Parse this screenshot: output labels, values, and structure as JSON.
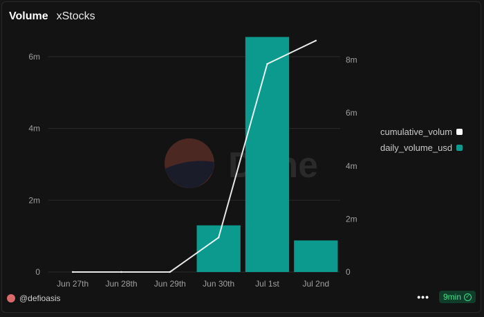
{
  "header": {
    "title": "Volume",
    "subtitle": "xStocks"
  },
  "legend": {
    "items": [
      {
        "label": "cumulative_volum",
        "color": "#ffffff"
      },
      {
        "label": "daily_volume_usd",
        "color": "#0b9a8d"
      }
    ]
  },
  "footer": {
    "author": "@defioasis",
    "more_icon": "ellipsis-icon",
    "refresh_label": "9min"
  },
  "watermark": {
    "text": "Dune"
  },
  "colors": {
    "bar": "#0b9a8d",
    "line": "#ffffff",
    "grid": "#2b2b2b",
    "tick": "#a0a0a0",
    "badge_bg": "#0f3d2a",
    "badge_text": "#45e08a"
  },
  "chart_data": {
    "type": "bar",
    "categories": [
      "Jun 27th",
      "Jun 28th",
      "Jun 29th",
      "Jun 30th",
      "Jul 1st",
      "Jul 2nd"
    ],
    "series": [
      {
        "name": "daily_volume_usd",
        "type": "bar",
        "axis": "left",
        "values": [
          0,
          0,
          0,
          1300000,
          6550000,
          880000
        ]
      },
      {
        "name": "cumulative_volum",
        "type": "line",
        "axis": "right",
        "values": [
          0,
          0,
          0,
          1300000,
          7850000,
          8730000
        ]
      }
    ],
    "y_left": {
      "ticks": [
        0,
        2000000,
        4000000,
        6000000
      ],
      "tick_labels": [
        "0",
        "2m",
        "4m",
        "6m"
      ],
      "ylim": [
        0,
        6500000
      ]
    },
    "y_right": {
      "ticks": [
        0,
        2000000,
        4000000,
        6000000,
        8000000
      ],
      "tick_labels": [
        "0",
        "2m",
        "4m",
        "6m",
        "8m"
      ],
      "ylim": [
        0,
        8800000
      ]
    },
    "grid": true,
    "legend_position": "right"
  }
}
